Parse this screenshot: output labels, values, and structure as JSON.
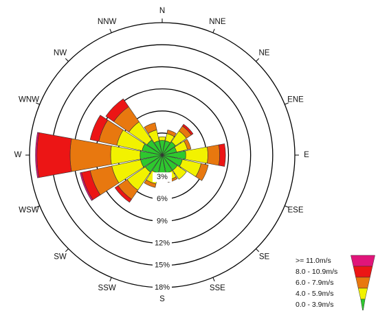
{
  "chart_data": {
    "type": "windrose",
    "categories": [
      "N",
      "NNE",
      "NE",
      "ENE",
      "E",
      "ESE",
      "SE",
      "SSE",
      "S",
      "SSW",
      "SW",
      "WSW",
      "W",
      "WNW",
      "NW",
      "NNW"
    ],
    "series": [
      {
        "name": "0.0 - 3.9m/s",
        "color": "#2ec82e",
        "values": [
          2,
          2,
          2.2,
          2,
          3.2,
          2.8,
          2.5,
          2.5,
          2.5,
          2.5,
          2.8,
          3,
          3,
          2.8,
          2.5,
          2
        ]
      },
      {
        "name": "4.0 - 5.9m/s",
        "color": "#f2f200",
        "values": [
          0.5,
          1,
          1.8,
          1.5,
          3,
          2.6,
          1.5,
          1,
          0.5,
          1.5,
          3,
          4,
          4,
          3.5,
          3,
          1.5
        ]
      },
      {
        "name": "6.0 - 7.9m/s",
        "color": "#e8780f",
        "values": [
          0,
          0.5,
          0.8,
          0.5,
          1.6,
          1,
          0,
          0.3,
          0,
          0.5,
          1.5,
          3,
          5.5,
          2.5,
          2.5,
          1
        ]
      },
      {
        "name": "8.0 - 10.9m/s",
        "color": "#ec1515",
        "values": [
          0,
          0,
          0.3,
          0,
          0.8,
          0,
          0,
          0,
          0,
          0,
          0.5,
          1.2,
          4.5,
          1.2,
          1.3,
          0
        ]
      },
      {
        "name": ">= 11.0m/s",
        "color": "#e0157a",
        "values": [
          0,
          0,
          0,
          0,
          0,
          0,
          0,
          0,
          0,
          0,
          0,
          0.2,
          0.2,
          0,
          0,
          0
        ]
      }
    ],
    "rlim": [
      0,
      18
    ],
    "rticks": [
      {
        "value": 3,
        "label": "3%"
      },
      {
        "value": 6,
        "label": "6%"
      },
      {
        "value": 9,
        "label": "9%"
      },
      {
        "value": 12,
        "label": "12%"
      },
      {
        "value": 15,
        "label": "15%"
      },
      {
        "value": 18,
        "label": "18%"
      }
    ],
    "legend": "lower right"
  }
}
